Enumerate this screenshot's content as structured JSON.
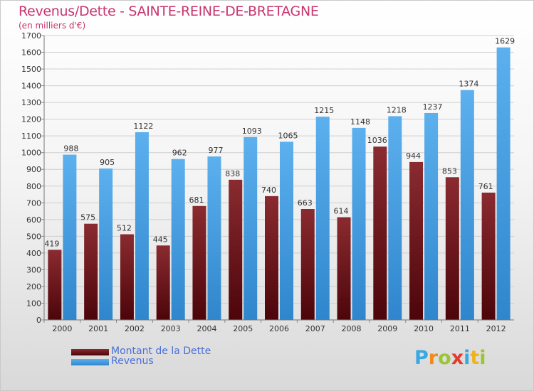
{
  "header": {
    "title": "Revenus/Dette - SAINTE-REINE-DE-BRETAGNE",
    "subtitle": "(en milliers d'€)"
  },
  "legend": [
    {
      "label": "Montant de la Dette",
      "color": "#6b0d12"
    },
    {
      "label": "Revenus",
      "color": "#3f9be0"
    }
  ],
  "logo": {
    "letters": [
      {
        "ch": "P",
        "color": "#39a8e0"
      },
      {
        "ch": "r",
        "color": "#f08a1c"
      },
      {
        "ch": "o",
        "color": "#9ac534"
      },
      {
        "ch": "x",
        "color": "#e23b2e"
      },
      {
        "ch": "i",
        "color": "#39a8e0"
      },
      {
        "ch": "t",
        "color": "#f2b21c"
      },
      {
        "ch": "i",
        "color": "#9ac534"
      }
    ]
  },
  "chart_data": {
    "type": "bar",
    "title": "Revenus/Dette - SAINTE-REINE-DE-BRETAGNE",
    "subtitle": "(en milliers d'€)",
    "categories": [
      "2000",
      "2001",
      "2002",
      "2003",
      "2004",
      "2005",
      "2006",
      "2007",
      "2008",
      "2009",
      "2010",
      "2011",
      "2012"
    ],
    "series": [
      {
        "name": "Montant de la Dette",
        "color": "#6b0d12",
        "values": [
          419,
          575,
          512,
          445,
          681,
          838,
          740,
          663,
          614,
          1036,
          944,
          853,
          761
        ]
      },
      {
        "name": "Revenus",
        "color": "#3f9be0",
        "values": [
          988,
          905,
          1122,
          962,
          977,
          1093,
          1065,
          1215,
          1148,
          1218,
          1237,
          1374,
          1629
        ]
      }
    ],
    "ylim": [
      0,
      1700
    ],
    "yticks": [
      0,
      100,
      200,
      300,
      400,
      500,
      600,
      700,
      800,
      900,
      1000,
      1100,
      1200,
      1300,
      1400,
      1500,
      1600,
      1700
    ],
    "grid": true,
    "legend_position": "bottom-left"
  }
}
